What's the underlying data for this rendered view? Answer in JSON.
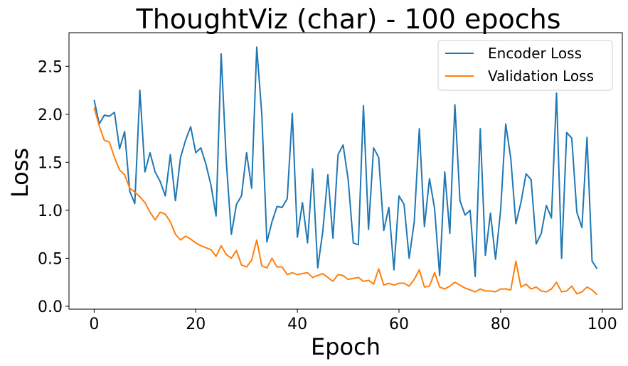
{
  "chart_data": {
    "type": "line",
    "title": "ThoughtViz (char) - 100 epochs",
    "xlabel": "Epoch",
    "ylabel": "Loss",
    "xlim": [
      -4.95,
      103.95
    ],
    "ylim": [
      -0.03,
      2.85
    ],
    "xticks": [
      0,
      20,
      40,
      60,
      80,
      100
    ],
    "yticks": [
      0.0,
      0.5,
      1.0,
      1.5,
      2.0,
      2.5
    ],
    "xtick_labels": [
      "0",
      "20",
      "40",
      "60",
      "80",
      "100"
    ],
    "ytick_labels": [
      "0.0",
      "0.5",
      "1.0",
      "1.5",
      "2.0",
      "2.5"
    ],
    "grid": false,
    "legend_position": "top-right",
    "series": [
      {
        "name": "Encoder Loss",
        "color": "#1f77b4",
        "x": [
          0,
          1,
          2,
          3,
          4,
          5,
          6,
          7,
          8,
          9,
          10,
          11,
          12,
          13,
          14,
          15,
          16,
          17,
          18,
          19,
          20,
          21,
          22,
          23,
          24,
          25,
          26,
          27,
          28,
          29,
          30,
          31,
          32,
          33,
          34,
          35,
          36,
          37,
          38,
          39,
          40,
          41,
          42,
          43,
          44,
          45,
          46,
          47,
          48,
          49,
          50,
          51,
          52,
          53,
          54,
          55,
          56,
          57,
          58,
          59,
          60,
          61,
          62,
          63,
          64,
          65,
          66,
          67,
          68,
          69,
          70,
          71,
          72,
          73,
          74,
          75,
          76,
          77,
          78,
          79,
          80,
          81,
          82,
          83,
          84,
          85,
          86,
          87,
          88,
          89,
          90,
          91,
          92,
          93,
          94,
          95,
          96,
          97,
          98,
          99
        ],
        "values": [
          2.15,
          1.9,
          1.99,
          1.98,
          2.02,
          1.64,
          1.82,
          1.2,
          1.07,
          2.25,
          1.4,
          1.6,
          1.4,
          1.3,
          1.15,
          1.58,
          1.1,
          1.55,
          1.73,
          1.87,
          1.6,
          1.65,
          1.48,
          1.26,
          0.94,
          2.63,
          1.52,
          0.75,
          1.06,
          1.15,
          1.6,
          1.23,
          2.7,
          2.0,
          0.67,
          0.88,
          1.04,
          1.03,
          1.12,
          2.01,
          0.72,
          1.08,
          0.66,
          1.43,
          0.4,
          0.78,
          1.37,
          0.71,
          1.58,
          1.68,
          1.32,
          0.66,
          0.64,
          2.09,
          0.8,
          1.65,
          1.55,
          0.79,
          1.03,
          0.38,
          1.15,
          1.06,
          0.5,
          0.88,
          1.85,
          0.83,
          1.33,
          1.02,
          0.32,
          1.4,
          0.76,
          2.1,
          1.1,
          0.95,
          1.0,
          0.31,
          1.85,
          0.53,
          0.97,
          0.49,
          1.0,
          1.9,
          1.54,
          0.86,
          1.08,
          1.38,
          1.32,
          0.65,
          0.76,
          1.05,
          0.92,
          2.22,
          0.5,
          1.81,
          1.75,
          0.98,
          0.82,
          1.76,
          0.47,
          0.39
        ]
      },
      {
        "name": "Validation Loss",
        "color": "#ff7f0e",
        "x": [
          0,
          1,
          2,
          3,
          4,
          5,
          6,
          7,
          8,
          9,
          10,
          11,
          12,
          13,
          14,
          15,
          16,
          17,
          18,
          19,
          20,
          21,
          22,
          23,
          24,
          25,
          26,
          27,
          28,
          29,
          30,
          31,
          32,
          33,
          34,
          35,
          36,
          37,
          38,
          39,
          40,
          41,
          42,
          43,
          44,
          45,
          46,
          47,
          48,
          49,
          50,
          51,
          52,
          53,
          54,
          55,
          56,
          57,
          58,
          59,
          60,
          61,
          62,
          63,
          64,
          65,
          66,
          67,
          68,
          69,
          70,
          71,
          72,
          73,
          74,
          75,
          76,
          77,
          78,
          79,
          80,
          81,
          82,
          83,
          84,
          85,
          86,
          87,
          88,
          89,
          90,
          91,
          92,
          93,
          94,
          95,
          96,
          97,
          98,
          99
        ],
        "values": [
          2.07,
          1.88,
          1.73,
          1.71,
          1.55,
          1.42,
          1.37,
          1.23,
          1.19,
          1.14,
          1.08,
          0.98,
          0.9,
          0.98,
          0.96,
          0.88,
          0.75,
          0.69,
          0.73,
          0.7,
          0.66,
          0.63,
          0.61,
          0.59,
          0.52,
          0.63,
          0.54,
          0.5,
          0.58,
          0.43,
          0.41,
          0.48,
          0.69,
          0.42,
          0.4,
          0.5,
          0.41,
          0.41,
          0.33,
          0.35,
          0.33,
          0.34,
          0.35,
          0.3,
          0.32,
          0.34,
          0.3,
          0.26,
          0.33,
          0.32,
          0.28,
          0.29,
          0.3,
          0.26,
          0.27,
          0.23,
          0.39,
          0.22,
          0.24,
          0.22,
          0.24,
          0.24,
          0.21,
          0.28,
          0.38,
          0.2,
          0.21,
          0.35,
          0.2,
          0.18,
          0.21,
          0.25,
          0.22,
          0.19,
          0.17,
          0.15,
          0.18,
          0.16,
          0.16,
          0.15,
          0.18,
          0.18,
          0.17,
          0.47,
          0.2,
          0.23,
          0.18,
          0.2,
          0.16,
          0.15,
          0.18,
          0.25,
          0.15,
          0.16,
          0.21,
          0.13,
          0.15,
          0.2,
          0.17,
          0.12
        ]
      }
    ]
  }
}
